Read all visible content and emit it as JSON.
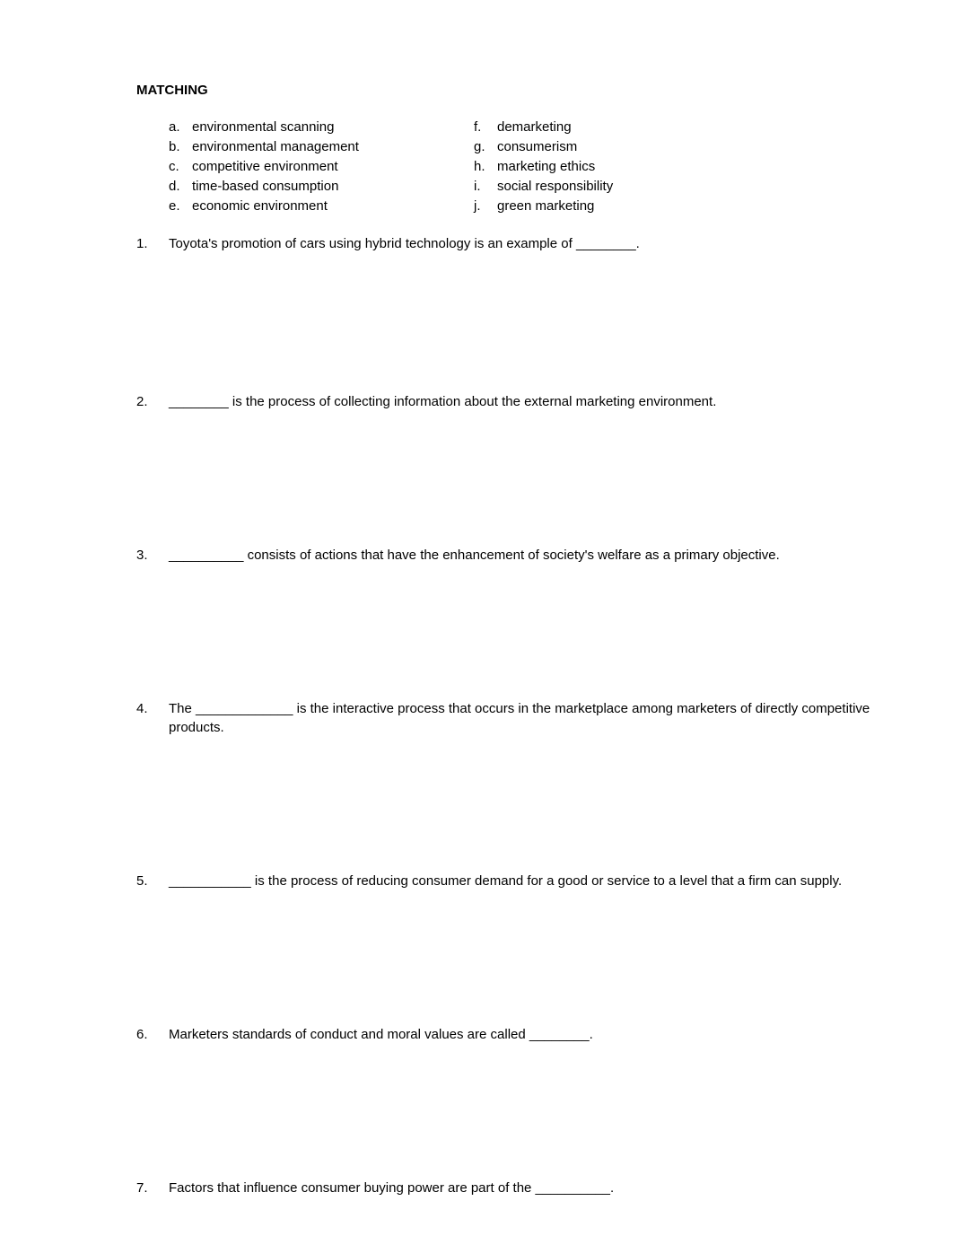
{
  "heading": "MATCHING",
  "options": {
    "left": [
      {
        "letter": "a.",
        "text": "environmental scanning"
      },
      {
        "letter": "b.",
        "text": "environmental management"
      },
      {
        "letter": "c.",
        "text": "competitive environment"
      },
      {
        "letter": "d.",
        "text": "time-based consumption"
      },
      {
        "letter": "e.",
        "text": "economic environment"
      }
    ],
    "right": [
      {
        "letter": "f.",
        "text": "demarketing"
      },
      {
        "letter": "g.",
        "text": "consumerism"
      },
      {
        "letter": "h.",
        "text": "marketing ethics"
      },
      {
        "letter": "i.",
        "text": "social responsibility"
      },
      {
        "letter": "j.",
        "text": "green marketing"
      }
    ]
  },
  "questions": [
    {
      "num": "1.",
      "text": "Toyota's promotion of cars using hybrid technology is an example of ________."
    },
    {
      "num": "2.",
      "text": "________ is the process of collecting information about the external marketing environment."
    },
    {
      "num": "3.",
      "text": "__________ consists of actions that have the enhancement of society's welfare as a primary objective."
    },
    {
      "num": "4.",
      "text": "The _____________ is the interactive process that occurs in the marketplace among marketers of directly competitive products."
    },
    {
      "num": "5.",
      "text": "___________ is the process of reducing consumer demand for a good or service to a level that a firm can supply."
    },
    {
      "num": "6.",
      "text": "Marketers standards of conduct and moral values are called ________."
    },
    {
      "num": "7.",
      "text": "Factors that influence consumer buying power are part of the __________."
    }
  ]
}
